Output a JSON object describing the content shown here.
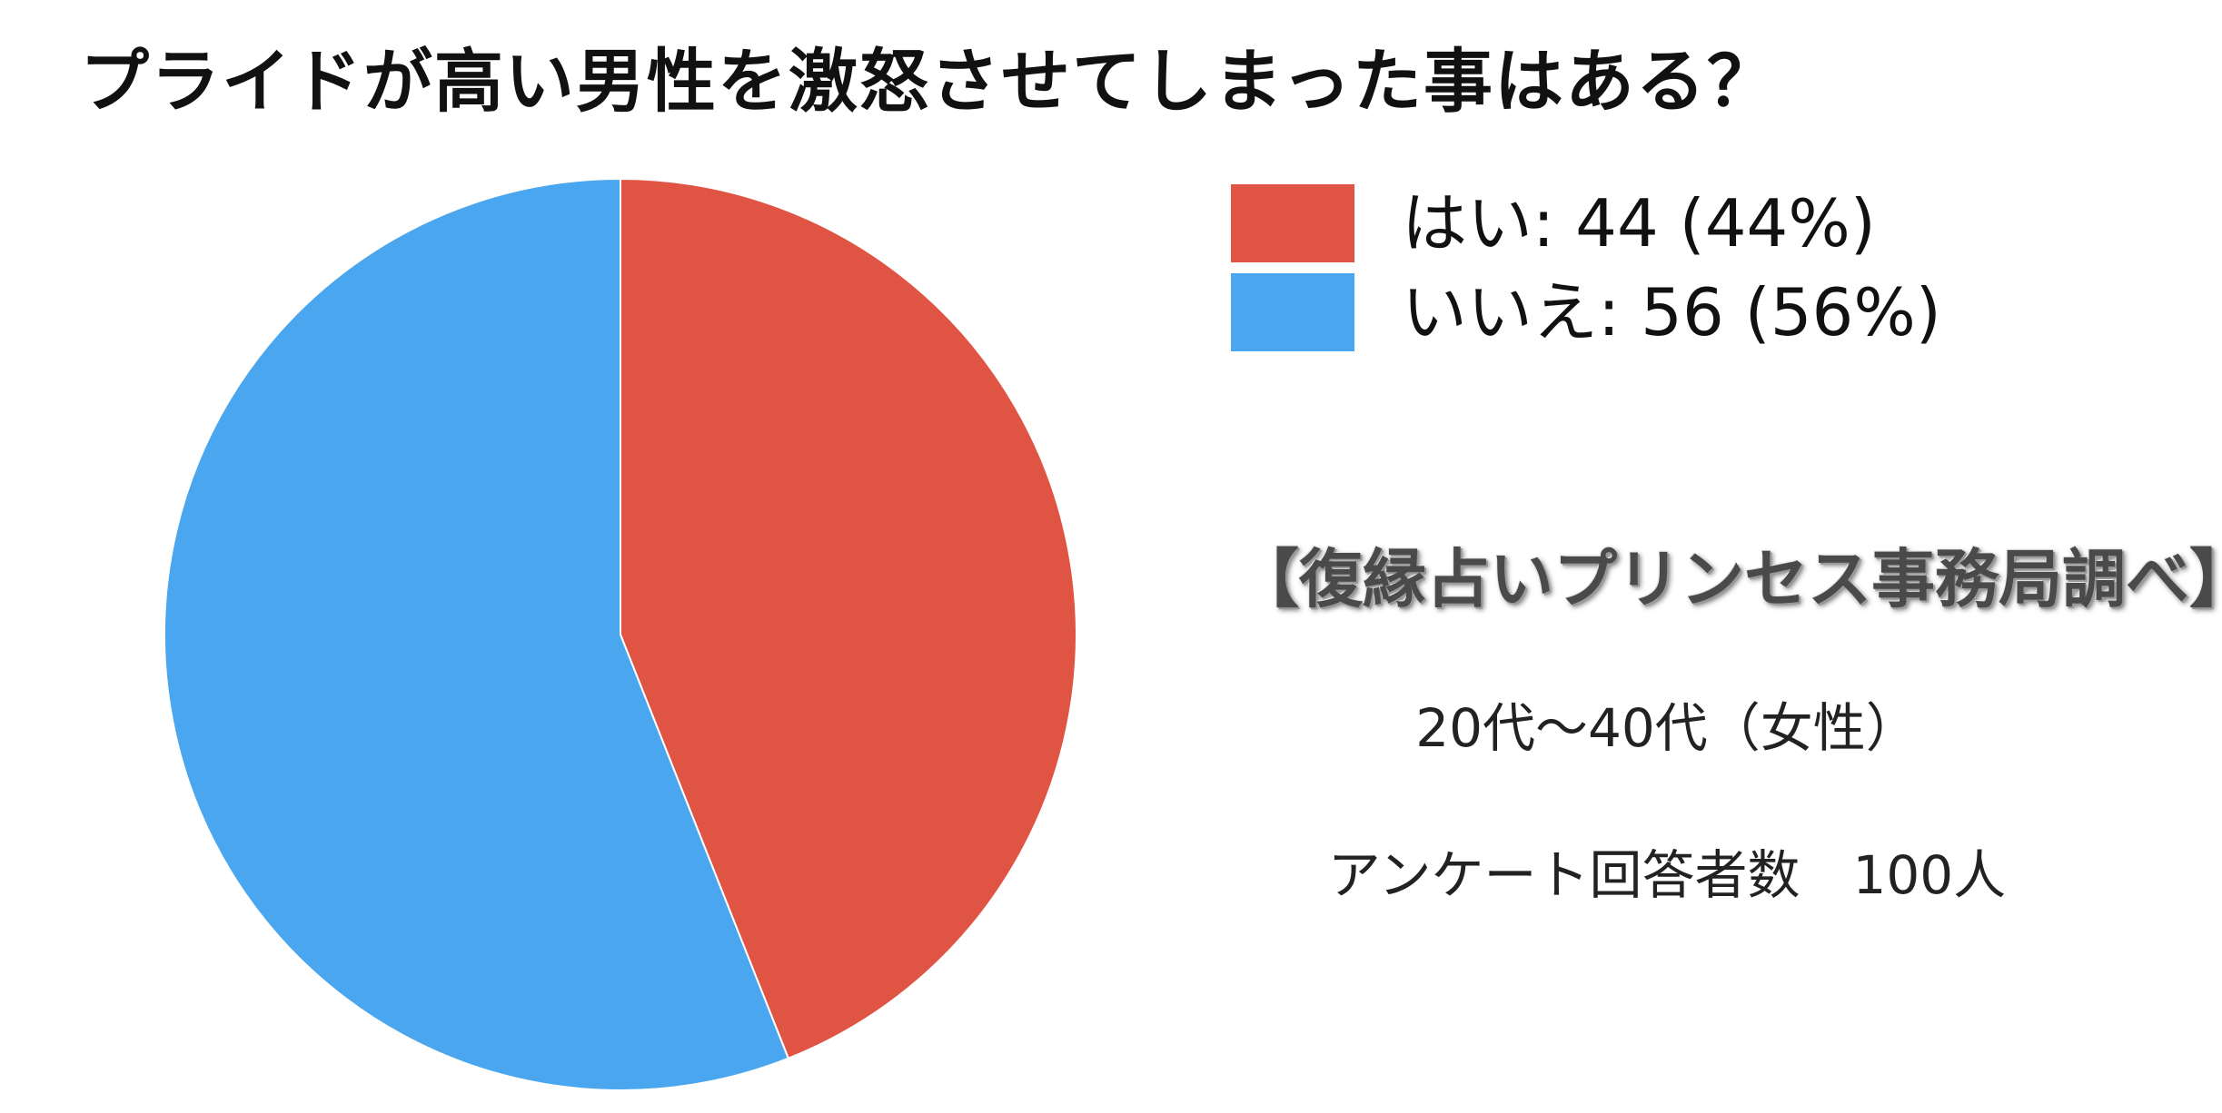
{
  "title": "プライドが高い男性を激怒させてしまった事はある？",
  "chart_data": {
    "type": "pie",
    "title": "プライドが高い男性を激怒させてしまった事はある？",
    "categories": [
      "はい",
      "いいえ"
    ],
    "values": [
      44,
      56
    ],
    "percentages": [
      44,
      56
    ],
    "colors": [
      "#E05443",
      "#4AA6EE"
    ],
    "legend": {
      "placement": "top-right",
      "entries": [
        "はい: 44 (44%)",
        "いいえ: 56 (56%)"
      ]
    }
  },
  "annotations": {
    "source": "【復縁占いプリンセス事務局調べ】",
    "age_range": "20代〜40代（女性）",
    "respondents": "アンケート回答者数　100人"
  }
}
